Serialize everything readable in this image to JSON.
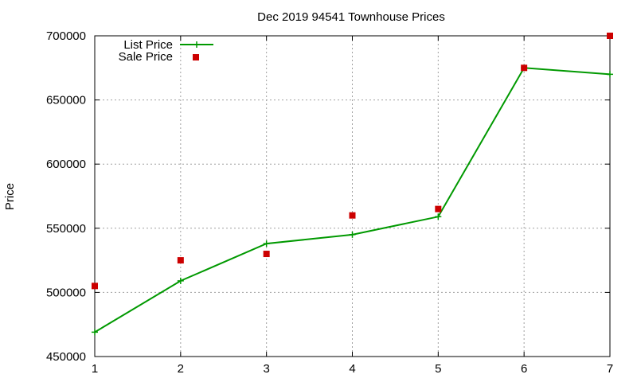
{
  "chart_data": {
    "type": "line",
    "title": "Dec 2019 94541 Townhouse Prices",
    "xlabel": "",
    "ylabel": "Price",
    "x": [
      1,
      2,
      3,
      4,
      5,
      6,
      7
    ],
    "xlim": [
      1,
      7
    ],
    "ylim": [
      450000,
      700000
    ],
    "xticks": [
      1,
      2,
      3,
      4,
      5,
      6,
      7
    ],
    "yticks": [
      450000,
      500000,
      550000,
      600000,
      650000,
      700000
    ],
    "grid": true,
    "legend_position": "top-left",
    "series": [
      {
        "name": "List Price",
        "style": "line-with-plus-markers",
        "color": "#009900",
        "values": [
          469000,
          509000,
          538000,
          545000,
          559000,
          675000,
          670000
        ]
      },
      {
        "name": "Sale Price",
        "style": "square-markers",
        "color": "#cc0000",
        "values": [
          505000,
          525000,
          530000,
          560000,
          565000,
          675000,
          700000
        ]
      }
    ]
  }
}
